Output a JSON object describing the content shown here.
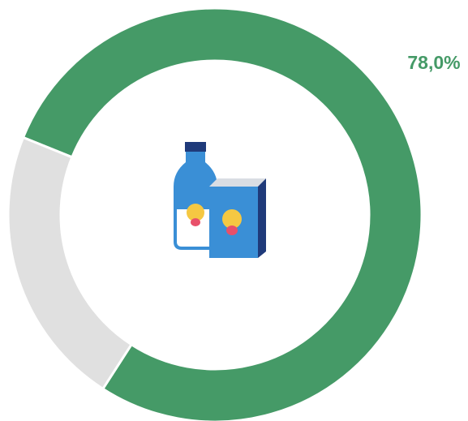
{
  "chart_data": {
    "type": "donut",
    "categories": [
      null,
      null
    ],
    "values": [
      78.0,
      22.0
    ],
    "value_labels": [
      "78,0%",
      null
    ],
    "colors": [
      "#459a67",
      "#e0e0e0"
    ],
    "label_color": "#459a67"
  }
}
